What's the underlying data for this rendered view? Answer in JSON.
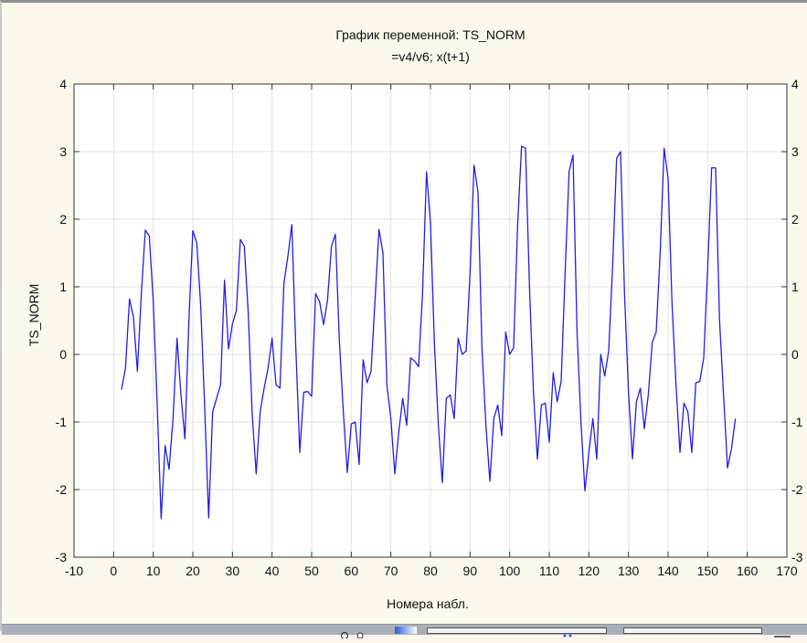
{
  "chart_data": {
    "type": "line",
    "title": "График переменной: TS_NORM",
    "subtitle": "=v4/v6; x(t+1)",
    "xlabel": "Номера набл.",
    "ylabel": "TS_NORM",
    "xlim": [
      -10,
      170
    ],
    "ylim": [
      -3,
      4
    ],
    "xticks": [
      -10,
      0,
      10,
      20,
      30,
      40,
      50,
      60,
      70,
      80,
      90,
      100,
      110,
      120,
      130,
      140,
      150,
      160,
      170
    ],
    "yticks": [
      -3,
      -2,
      -1,
      0,
      1,
      2,
      3,
      4
    ],
    "grid": true,
    "color": "#1f1fe6",
    "x_start": 2,
    "x_step": 1,
    "values": [
      -0.52,
      -0.2,
      0.82,
      0.55,
      -0.25,
      0.9,
      1.84,
      1.75,
      0.8,
      -0.75,
      -2.43,
      -1.35,
      -1.7,
      -0.95,
      0.24,
      -0.6,
      -1.25,
      0.5,
      1.83,
      1.65,
      0.7,
      -0.8,
      -2.42,
      -0.85,
      -0.65,
      -0.45,
      1.1,
      0.08,
      0.45,
      0.65,
      1.7,
      1.6,
      0.6,
      -0.9,
      -1.77,
      -0.85,
      -0.5,
      -0.2,
      0.24,
      -0.45,
      -0.5,
      1.05,
      1.45,
      1.92,
      0.1,
      -1.45,
      -0.56,
      -0.55,
      -0.62,
      0.9,
      0.78,
      0.44,
      0.8,
      1.6,
      1.78,
      0.2,
      -0.85,
      -1.75,
      -1.03,
      -1.0,
      -1.63,
      -0.08,
      -0.42,
      -0.25,
      0.8,
      1.85,
      1.5,
      -0.45,
      -0.95,
      -1.77,
      -1.15,
      -0.65,
      -1.05,
      -0.05,
      -0.1,
      -0.18,
      0.9,
      2.7,
      1.95,
      0.15,
      -1.05,
      -1.9,
      -0.65,
      -0.6,
      -0.95,
      0.24,
      0.0,
      0.05,
      1.2,
      2.8,
      2.4,
      0.1,
      -1.05,
      -1.88,
      -0.95,
      -0.75,
      -1.2,
      0.33,
      0.0,
      0.1,
      1.9,
      3.08,
      3.05,
      1.0,
      -0.55,
      -1.55,
      -0.75,
      -0.72,
      -1.3,
      -0.27,
      -0.7,
      -0.4,
      1.2,
      2.7,
      2.95,
      0.35,
      -1.0,
      -2.02,
      -1.45,
      -0.95,
      -1.55,
      0.0,
      -0.32,
      0.05,
      1.3,
      2.9,
      3.0,
      0.9,
      -0.55,
      -1.55,
      -0.7,
      -0.5,
      -1.1,
      -0.6,
      0.18,
      0.33,
      1.5,
      3.05,
      2.6,
      0.75,
      -0.45,
      -1.45,
      -0.72,
      -0.85,
      -1.45,
      -0.42,
      -0.4,
      -0.05,
      1.28,
      2.76,
      2.76,
      0.5,
      -0.6,
      -1.68,
      -1.4,
      -0.95
    ]
  }
}
